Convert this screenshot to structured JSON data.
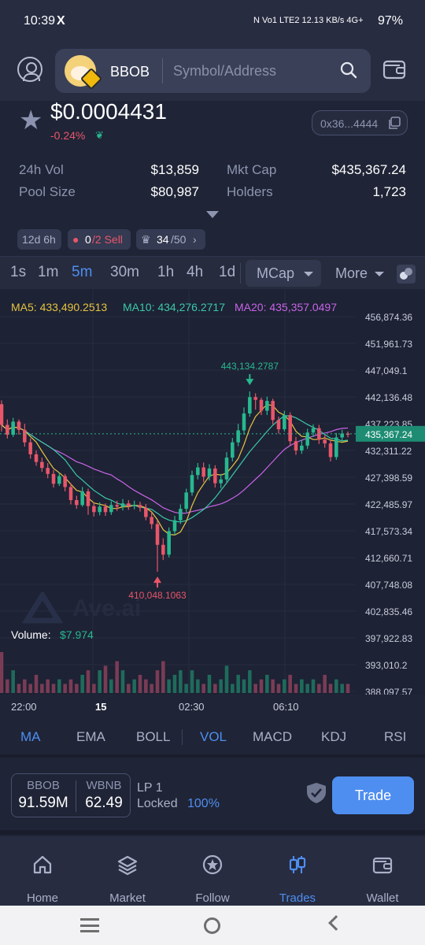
{
  "status_bar": {
    "time": "10:39",
    "x_glyph": "X",
    "network_text": "N  Vo1 LTE2  12.13 KB/s  4G+",
    "battery": "97%"
  },
  "header": {
    "token_name": "BBOB",
    "search_placeholder": "Symbol/Address"
  },
  "token": {
    "price": "$0.0004431",
    "change": "-0.24%",
    "address": "0x36...4444",
    "stats": {
      "vol_24h_label": "24h Vol",
      "vol_24h_value": "$13,859",
      "pool_size_label": "Pool Size",
      "pool_size_value": "$80,987",
      "mkt_cap_label": "Mkt Cap",
      "mkt_cap_value": "$435,367.24",
      "holders_label": "Holders",
      "holders_value": "1,723"
    },
    "chips": {
      "age": "12d 6h",
      "sell_count": "0",
      "sell_total": "/2 Sell",
      "crown_value": "34",
      "crown_total": "/50"
    }
  },
  "timeframes": {
    "items": [
      "1s",
      "1m",
      "5m",
      "30m",
      "1h",
      "4h",
      "1d"
    ],
    "active": "5m",
    "mcap_label": "MCap",
    "more_label": "More"
  },
  "chart_data": {
    "type": "candlestick",
    "title": "",
    "ma_labels": {
      "ma5": "MA5: 433,490.2513",
      "ma10": "MA10: 434,276.2717",
      "ma20": "MA20: 435,357.0497"
    },
    "y_ticks": [
      "456,874.36",
      "451,961.73",
      "447,049.1",
      "442,136.48",
      "437,223.85",
      "432,311.22",
      "427,398.59",
      "422,485.97",
      "417,573.34",
      "412,660.71",
      "407,748.08",
      "402,835.46",
      "397,922.83",
      "393,010.2",
      "388,097.57"
    ],
    "ylim": [
      388097.57,
      456874.36
    ],
    "x_ticks": [
      "22:00",
      "15",
      "02:30",
      "06:10"
    ],
    "current_value_label": "435,367.24",
    "current_value": 435367.24,
    "high_label": "443,134.2787",
    "high_value": 443134.2787,
    "low_label": "410,048.1063",
    "low_value": 410048.1063,
    "volume_label": "Volume:",
    "volume_value": "$7.974",
    "watermark": "Ave.ai",
    "colors": {
      "up": "#28b890",
      "down": "#e8566a",
      "ma5": "#e6c341",
      "ma10": "#3cc9a8",
      "ma20": "#c864e6"
    },
    "candles": [
      [
        440800,
        437000,
        441500,
        435800
      ],
      [
        437000,
        435200,
        438000,
        434500
      ],
      [
        435200,
        437600,
        438300,
        434800
      ],
      [
        437600,
        436100,
        438000,
        435200
      ],
      [
        436100,
        433800,
        437200,
        433000
      ],
      [
        433800,
        431600,
        434500,
        430800
      ],
      [
        431600,
        430200,
        432300,
        429500
      ],
      [
        430200,
        429100,
        431000,
        428400
      ],
      [
        429100,
        428000,
        430000,
        427200
      ],
      [
        428000,
        426200,
        428700,
        425500
      ],
      [
        426200,
        427600,
        428200,
        425800
      ],
      [
        427600,
        425600,
        428000,
        424800
      ],
      [
        425600,
        423200,
        426300,
        422400
      ],
      [
        423200,
        422300,
        424000,
        421600
      ],
      [
        422300,
        424800,
        425600,
        422000
      ],
      [
        424800,
        422100,
        425300,
        420500
      ],
      [
        422100,
        421000,
        422800,
        420200
      ],
      [
        421000,
        422000,
        422800,
        420400
      ],
      [
        422000,
        421000,
        422600,
        420300
      ],
      [
        421000,
        422300,
        423000,
        420500
      ],
      [
        422300,
        422000,
        423100,
        421200
      ],
      [
        422000,
        422600,
        423400,
        421300
      ],
      [
        422600,
        422100,
        423200,
        421400
      ],
      [
        422100,
        422300,
        423100,
        421500
      ],
      [
        422300,
        421800,
        422900,
        421100
      ],
      [
        421800,
        420100,
        422500,
        419500
      ],
      [
        420100,
        418800,
        421000,
        417900
      ],
      [
        418800,
        415000,
        419500,
        410048
      ],
      [
        415000,
        413200,
        416200,
        412200
      ],
      [
        413200,
        417500,
        418200,
        412700
      ],
      [
        417500,
        419500,
        420300,
        416800
      ],
      [
        419500,
        421600,
        422400,
        418800
      ],
      [
        421600,
        424600,
        425300,
        421000
      ],
      [
        424600,
        427800,
        428600,
        424000
      ],
      [
        427800,
        429200,
        430000,
        427000
      ],
      [
        429200,
        427500,
        430100,
        426500
      ],
      [
        427500,
        429000,
        429800,
        426800
      ],
      [
        429000,
        426300,
        429600,
        425500
      ],
      [
        426300,
        427000,
        428000,
        425400
      ],
      [
        427000,
        431000,
        432000,
        426500
      ],
      [
        431000,
        433800,
        434600,
        430300
      ],
      [
        433800,
        436000,
        437200,
        433100
      ],
      [
        436000,
        439100,
        440200,
        435200
      ],
      [
        439100,
        442100,
        443134,
        438500
      ],
      [
        442100,
        441600,
        442800,
        439800
      ],
      [
        441600,
        439600,
        442000,
        438800
      ],
      [
        439600,
        441400,
        442200,
        438800
      ],
      [
        441400,
        437900,
        441800,
        437100
      ],
      [
        437900,
        436200,
        438500,
        435400
      ],
      [
        436200,
        438800,
        439600,
        435800
      ],
      [
        438800,
        434000,
        439300,
        433200
      ],
      [
        434000,
        432300,
        434800,
        431500
      ],
      [
        432300,
        433200,
        434300,
        431700
      ],
      [
        433200,
        435600,
        436300,
        432600
      ],
      [
        435600,
        436400,
        437100,
        434800
      ],
      [
        436400,
        434300,
        437000,
        433500
      ],
      [
        434300,
        433600,
        435100,
        432800
      ],
      [
        433600,
        431100,
        434200,
        430300
      ],
      [
        431100,
        434700,
        435500,
        430600
      ],
      [
        434700,
        435400,
        436100,
        434000
      ],
      [
        435400,
        435367,
        435800,
        434700
      ]
    ],
    "volumes": [
      9,
      3,
      5,
      2,
      3,
      2,
      4,
      2,
      3,
      2,
      3,
      2,
      3,
      2,
      4,
      5,
      2,
      5,
      6,
      3,
      7,
      5,
      2,
      3,
      4,
      3,
      2,
      5,
      7,
      3,
      4,
      5,
      2,
      5,
      3,
      2,
      4,
      2,
      3,
      6,
      2,
      4,
      3,
      5,
      2,
      3,
      4,
      3,
      2,
      3,
      4,
      2,
      3,
      2,
      3,
      2,
      4,
      2,
      3,
      2,
      2
    ]
  },
  "indicators": {
    "items": [
      "MA",
      "EMA",
      "BOLL",
      "VOL",
      "MACD",
      "KDJ",
      "RSI"
    ],
    "active": [
      "MA",
      "VOL"
    ]
  },
  "pool": {
    "token_a": "BBOB",
    "token_a_amount": "91.59M",
    "token_b": "WBNB",
    "token_b_amount": "62.49",
    "lp_label": "LP 1",
    "locked_label": "Locked",
    "locked_pct": "100%",
    "trade_label": "Trade"
  },
  "bottom_nav": {
    "items": [
      "Home",
      "Market",
      "Follow",
      "Trades",
      "Wallet"
    ],
    "active": "Trades"
  }
}
